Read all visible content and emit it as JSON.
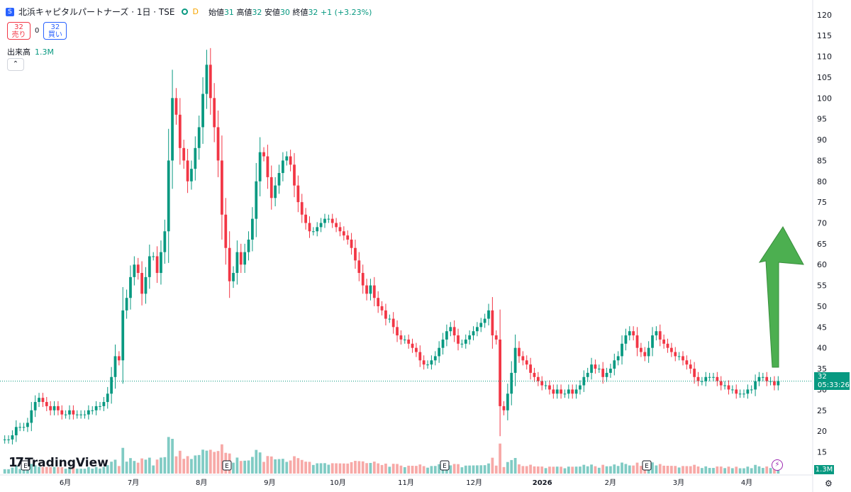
{
  "legend": {
    "title": "北浜キャピタルパートナーズ · 1日 · TSE",
    "interval_badge": "D",
    "open_label": "始値",
    "open": "31",
    "high_label": "高値",
    "high": "32",
    "low_label": "安値",
    "low": "30",
    "close_label": "終値",
    "close": "32",
    "change": "+1 (+3.23%)"
  },
  "trade_buttons": {
    "sell_price": "32",
    "sell_label": "売り",
    "spread": "0",
    "buy_price": "32",
    "buy_label": "買い"
  },
  "volume_legend": {
    "label": "出来高",
    "value": "1.3M"
  },
  "collapse_label": "⌃",
  "logo_text": "TradingView",
  "price_tag": {
    "price": "32",
    "countdown": "05:33:26"
  },
  "volume_tag": "1.3M",
  "colors": {
    "up": "#089981",
    "down": "#f23645",
    "up_volume": "#80cbc4",
    "down_volume": "#f7a9a7",
    "arrow": "#4caf50"
  },
  "chart_data": {
    "type": "candlestick",
    "y_ticks": [
      15,
      20,
      25,
      30,
      35,
      40,
      45,
      50,
      55,
      60,
      65,
      70,
      75,
      80,
      85,
      90,
      95,
      100,
      105,
      110,
      115,
      120
    ],
    "ylim": [
      11,
      121
    ],
    "x_labels": [
      "6月",
      "7月",
      "8月",
      "9月",
      "10月",
      "11月",
      "12月",
      "2026",
      "2月",
      "3月",
      "4月"
    ],
    "current_price": 32,
    "earnings_marker": "E",
    "annotation": "up-arrow",
    "close_series": [
      18,
      18,
      19,
      21,
      21,
      21,
      22,
      25,
      27,
      28,
      27,
      26,
      25,
      26,
      25,
      24,
      24,
      25,
      24,
      24,
      24,
      24,
      25,
      25,
      26,
      26,
      27,
      29,
      33,
      38,
      37,
      49,
      52,
      57,
      60,
      58,
      53,
      57,
      62,
      62,
      58,
      63,
      68,
      85,
      100,
      96,
      88,
      85,
      80,
      83,
      88,
      93,
      101,
      108,
      100,
      93,
      85,
      72,
      64,
      56,
      58,
      63,
      60,
      63,
      66,
      71,
      80,
      87,
      86,
      81,
      76,
      79,
      82,
      85,
      86,
      84,
      79,
      75,
      72,
      70,
      68,
      68,
      69,
      70,
      71,
      71,
      70,
      69,
      68,
      67,
      66,
      64,
      61,
      58,
      55,
      53,
      55,
      52,
      50,
      49,
      47,
      47,
      45,
      43,
      42,
      42,
      41,
      40,
      39,
      37,
      36,
      36,
      37,
      38,
      40,
      42,
      44,
      45,
      43,
      41,
      41,
      42,
      43,
      44,
      45,
      46,
      47,
      49,
      43,
      42,
      26,
      25,
      29,
      34,
      40,
      38,
      37,
      36,
      34,
      33,
      32,
      31,
      31,
      30,
      29,
      30,
      29,
      29,
      30,
      29,
      30,
      31,
      33,
      34,
      36,
      35,
      35,
      33,
      34,
      35,
      37,
      38,
      41,
      43,
      44,
      43,
      40,
      39,
      38,
      40,
      43,
      44,
      42,
      41,
      40,
      39,
      38,
      38,
      37,
      36,
      35,
      33,
      32,
      32,
      33,
      33,
      33,
      32,
      31,
      31,
      30,
      30,
      29,
      29,
      29,
      30,
      30,
      32,
      33,
      33,
      32,
      32,
      31,
      32
    ]
  }
}
